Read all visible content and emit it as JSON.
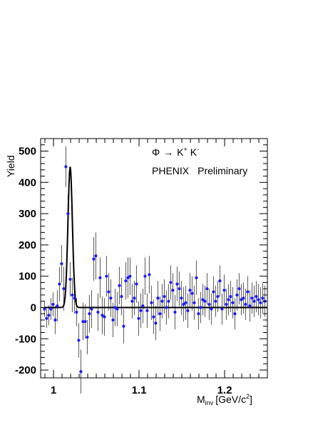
{
  "chart_data": {
    "type": "scatter",
    "title": "",
    "xlabel": "M",
    "xlabel_sub": "inv",
    "xlabel_unit_pre": "[GeV/c",
    "xlabel_unit_sup": "2",
    "xlabel_unit_post": "]",
    "ylabel": "Yield",
    "xlim": [
      0.985,
      1.25
    ],
    "ylim": [
      -225,
      540
    ],
    "xticks": [
      1.0,
      1.1,
      1.2
    ],
    "xtick_labels": [
      "1",
      "1.1",
      "1.2"
    ],
    "yticks": [
      -200,
      -100,
      0,
      100,
      200,
      300,
      400,
      500
    ],
    "ytick_labels": [
      "-200",
      "-100",
      "0",
      "100",
      "200",
      "300",
      "400",
      "500"
    ],
    "annotations": {
      "reaction": {
        "phi": "Φ",
        "arrow": "→",
        "k1": "K",
        "k1_sup": "+",
        "k2": "K",
        "k2_sup": "-"
      },
      "collab": "PHENIX",
      "status": "Preliminary"
    },
    "colors": {
      "points": "#1a1aff",
      "errors": "#555555",
      "fit": "#000000",
      "frame": "#000000"
    },
    "fit": {
      "type": "gaussian",
      "peak": 450,
      "mean": 1.0195,
      "sigma": 0.0026,
      "baseline": 0
    },
    "series": [
      {
        "x": [
          0.9895,
          0.992,
          0.9945,
          0.997,
          0.9995,
          1.002,
          1.0045,
          1.007,
          1.0095,
          1.012,
          1.0145,
          1.017,
          1.0195,
          1.022,
          1.0245,
          1.027,
          1.0295,
          1.032,
          1.0345,
          1.037,
          1.0395,
          1.042,
          1.0445,
          1.047,
          1.0495,
          1.052,
          1.0545,
          1.057,
          1.0595,
          1.062,
          1.0645,
          1.067,
          1.0695,
          1.072,
          1.0745,
          1.077,
          1.0795,
          1.082,
          1.0845,
          1.087,
          1.0895,
          1.092,
          1.0945,
          1.097,
          1.0995,
          1.102,
          1.1045,
          1.107,
          1.1095,
          1.112,
          1.1145,
          1.117,
          1.1195,
          1.122,
          1.1245,
          1.127,
          1.1295,
          1.132,
          1.1345,
          1.137,
          1.1395,
          1.142,
          1.1445,
          1.147,
          1.1495,
          1.152,
          1.1545,
          1.157,
          1.1595,
          1.162,
          1.1645,
          1.167,
          1.1695,
          1.172,
          1.1745,
          1.177,
          1.1795,
          1.182,
          1.1845,
          1.187,
          1.1895,
          1.192,
          1.1945,
          1.197,
          1.1995,
          1.202,
          1.2045,
          1.207,
          1.2095,
          1.212,
          1.2145,
          1.217,
          1.2195,
          1.222,
          1.2245,
          1.227,
          1.2295,
          1.232,
          1.2345,
          1.237,
          1.2395,
          1.242,
          1.2445,
          1.247
        ],
        "y": [
          -5,
          -35,
          -25,
          -5,
          10,
          -40,
          5,
          75,
          140,
          60,
          450,
          300,
          90,
          40,
          30,
          -15,
          -105,
          -205,
          -45,
          -45,
          -95,
          -20,
          -5,
          155,
          165,
          -15,
          95,
          -25,
          -30,
          100,
          50,
          30,
          -40,
          0,
          -5,
          70,
          35,
          -60,
          85,
          95,
          100,
          20,
          30,
          75,
          -35,
          -10,
          5,
          100,
          -10,
          105,
          15,
          -30,
          -50,
          30,
          -20,
          20,
          35,
          0,
          20,
          80,
          55,
          -15,
          75,
          60,
          30,
          10,
          15,
          -10,
          55,
          45,
          15,
          95,
          -20,
          0,
          25,
          20,
          60,
          10,
          -5,
          50,
          20,
          35,
          85,
          -5,
          55,
          10,
          25,
          35,
          15,
          -20,
          40,
          60,
          25,
          30,
          10,
          50,
          5,
          30,
          20,
          35,
          25,
          15,
          30,
          20
        ],
        "err": [
          25,
          30,
          32,
          35,
          38,
          45,
          50,
          55,
          60,
          70,
          65,
          60,
          55,
          55,
          50,
          45,
          55,
          70,
          60,
          55,
          55,
          60,
          60,
          70,
          75,
          60,
          65,
          60,
          60,
          65,
          60,
          60,
          55,
          60,
          55,
          60,
          60,
          55,
          60,
          65,
          60,
          55,
          55,
          60,
          55,
          55,
          55,
          60,
          55,
          60,
          55,
          55,
          55,
          55,
          55,
          55,
          55,
          55,
          55,
          55,
          55,
          55,
          55,
          55,
          55,
          55,
          55,
          55,
          55,
          55,
          55,
          55,
          50,
          50,
          50,
          50,
          50,
          50,
          50,
          50,
          50,
          50,
          50,
          50,
          50,
          50,
          50,
          50,
          50,
          50,
          50,
          50,
          50,
          50,
          50,
          50,
          50,
          50,
          50,
          50,
          50,
          50,
          50,
          50
        ]
      }
    ]
  }
}
